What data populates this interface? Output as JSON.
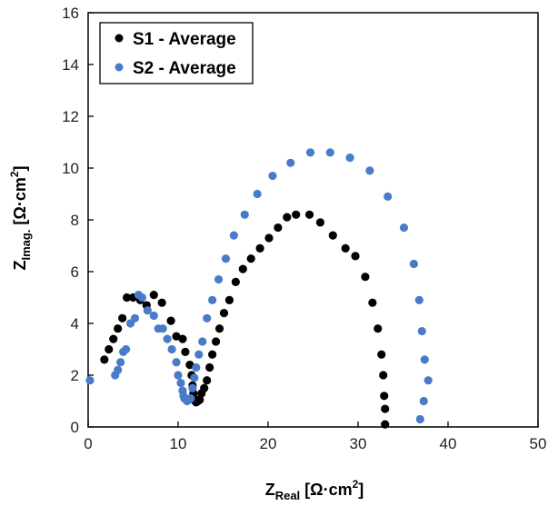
{
  "chart_data": {
    "type": "scatter",
    "title": "",
    "xlabel": {
      "main": "Z",
      "sub": "Real",
      "unit": " [Ω·cm",
      "sup": "2",
      "close": "]"
    },
    "ylabel": {
      "main": "Z",
      "sub": "Imag.",
      "unit": " [Ω·cm",
      "sup": "2",
      "close": "]"
    },
    "xlim": [
      0,
      50
    ],
    "ylim": [
      0,
      16
    ],
    "xticks": [
      "0",
      "10",
      "20",
      "30",
      "40",
      "50"
    ],
    "yticks": [
      "0",
      "2",
      "4",
      "6",
      "8",
      "10",
      "12",
      "14",
      "16"
    ],
    "grid": false,
    "legend_position": "top-left",
    "series": [
      {
        "name": "S1 - Average",
        "color": "#000000",
        "points": [
          [
            1.8,
            2.6
          ],
          [
            2.3,
            3.0
          ],
          [
            2.8,
            3.4
          ],
          [
            3.3,
            3.8
          ],
          [
            3.8,
            4.2
          ],
          [
            4.3,
            5.0
          ],
          [
            5.0,
            5.0
          ],
          [
            5.8,
            4.9
          ],
          [
            6.5,
            4.7
          ],
          [
            7.3,
            5.1
          ],
          [
            8.2,
            4.8
          ],
          [
            9.2,
            4.1
          ],
          [
            9.8,
            3.5
          ],
          [
            10.5,
            3.4
          ],
          [
            10.8,
            2.9
          ],
          [
            11.3,
            2.4
          ],
          [
            11.5,
            2.0
          ],
          [
            11.6,
            1.6
          ],
          [
            11.7,
            1.3
          ],
          [
            11.8,
            1.1
          ],
          [
            11.9,
            1.0
          ],
          [
            12.0,
            0.95
          ],
          [
            12.2,
            1.0
          ],
          [
            12.4,
            1.05
          ],
          [
            12.6,
            1.3
          ],
          [
            12.9,
            1.5
          ],
          [
            13.2,
            1.8
          ],
          [
            13.5,
            2.3
          ],
          [
            13.8,
            2.8
          ],
          [
            14.2,
            3.3
          ],
          [
            14.6,
            3.8
          ],
          [
            15.1,
            4.4
          ],
          [
            15.7,
            4.9
          ],
          [
            16.4,
            5.6
          ],
          [
            17.2,
            6.1
          ],
          [
            18.1,
            6.5
          ],
          [
            19.1,
            6.9
          ],
          [
            20.1,
            7.3
          ],
          [
            21.1,
            7.7
          ],
          [
            22.1,
            8.1
          ],
          [
            23.1,
            8.2
          ],
          [
            24.6,
            8.2
          ],
          [
            25.8,
            7.9
          ],
          [
            27.2,
            7.4
          ],
          [
            28.6,
            6.9
          ],
          [
            29.7,
            6.6
          ],
          [
            30.8,
            5.8
          ],
          [
            31.6,
            4.8
          ],
          [
            32.2,
            3.8
          ],
          [
            32.6,
            2.8
          ],
          [
            32.8,
            2.0
          ],
          [
            32.9,
            1.2
          ],
          [
            33.0,
            0.7
          ],
          [
            33.0,
            0.1
          ]
        ]
      },
      {
        "name": "S2 - Average",
        "color": "#4a7bc8",
        "points": [
          [
            0.2,
            1.8
          ],
          [
            3.0,
            2.0
          ],
          [
            3.3,
            2.2
          ],
          [
            3.6,
            2.5
          ],
          [
            3.9,
            2.9
          ],
          [
            4.2,
            3.0
          ],
          [
            4.7,
            4.0
          ],
          [
            5.2,
            4.2
          ],
          [
            5.6,
            5.1
          ],
          [
            6.0,
            5.0
          ],
          [
            6.6,
            4.5
          ],
          [
            7.3,
            4.3
          ],
          [
            7.8,
            3.8
          ],
          [
            8.3,
            3.8
          ],
          [
            8.8,
            3.4
          ],
          [
            9.3,
            3.0
          ],
          [
            9.8,
            2.5
          ],
          [
            10.0,
            2.0
          ],
          [
            10.3,
            1.7
          ],
          [
            10.5,
            1.4
          ],
          [
            10.6,
            1.2
          ],
          [
            10.7,
            1.1
          ],
          [
            10.8,
            1.1
          ],
          [
            11.0,
            1.0
          ],
          [
            11.2,
            1.05
          ],
          [
            11.4,
            1.1
          ],
          [
            11.6,
            1.5
          ],
          [
            11.8,
            1.9
          ],
          [
            12.0,
            2.3
          ],
          [
            12.3,
            2.8
          ],
          [
            12.7,
            3.3
          ],
          [
            13.2,
            4.2
          ],
          [
            13.8,
            4.9
          ],
          [
            14.5,
            5.7
          ],
          [
            15.3,
            6.5
          ],
          [
            16.2,
            7.4
          ],
          [
            17.4,
            8.2
          ],
          [
            18.8,
            9.0
          ],
          [
            20.5,
            9.7
          ],
          [
            22.5,
            10.2
          ],
          [
            24.7,
            10.6
          ],
          [
            26.9,
            10.6
          ],
          [
            29.1,
            10.4
          ],
          [
            31.3,
            9.9
          ],
          [
            33.3,
            8.9
          ],
          [
            35.1,
            7.7
          ],
          [
            36.2,
            6.3
          ],
          [
            36.8,
            4.9
          ],
          [
            37.1,
            3.7
          ],
          [
            37.4,
            2.6
          ],
          [
            37.8,
            1.8
          ],
          [
            37.3,
            1.0
          ],
          [
            36.9,
            0.3
          ]
        ]
      }
    ]
  }
}
